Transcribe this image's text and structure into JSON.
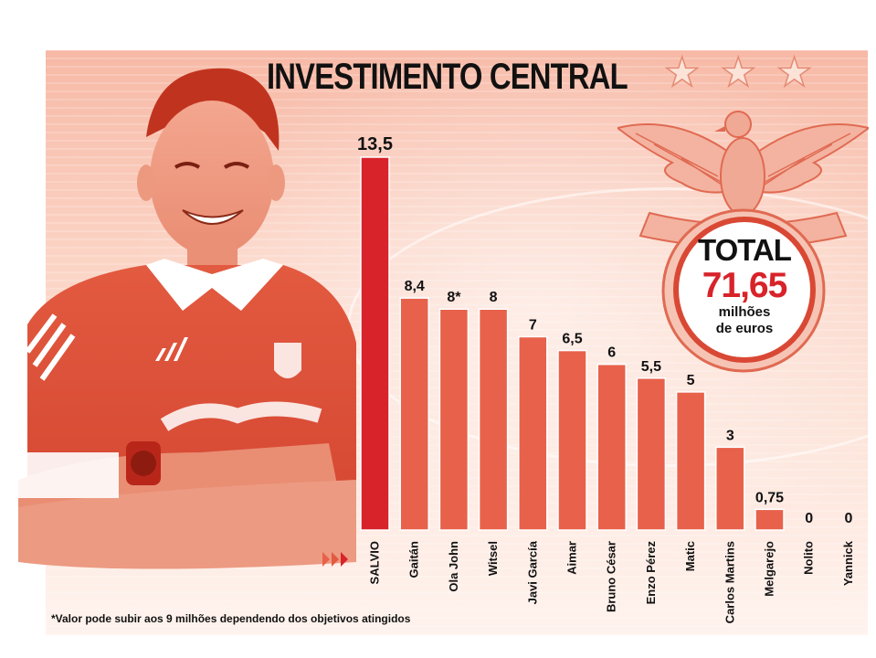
{
  "chart_data": {
    "type": "bar",
    "title": "INVESTIMENTO CENTRAL",
    "categories": [
      "SALVIO",
      "Gaitán",
      "Ola John",
      "Witsel",
      "Javi García",
      "Aimar",
      "Bruno César",
      "Enzo Pérez",
      "Matic",
      "Carlos Martins",
      "Melgarejo",
      "Nolito",
      "Yannick"
    ],
    "values": [
      13.5,
      8.4,
      8,
      8,
      7,
      6.5,
      6,
      5.5,
      5,
      3,
      0.75,
      0,
      0
    ],
    "value_labels": [
      "13,5",
      "8,4",
      "8*",
      "8",
      "7",
      "6,5",
      "6",
      "5,5",
      "5",
      "3",
      "0,75",
      "0",
      "0"
    ],
    "highlight_index": 0,
    "ylim": [
      0,
      13.5
    ],
    "xlabel": "",
    "ylabel": "",
    "grid": false,
    "colors": {
      "highlight_bar": "#d8232a",
      "bar": "#e8614a",
      "bar_edge": "#ffffff",
      "highlight_label": "#d8232a"
    }
  },
  "total": {
    "label": "TOTAL",
    "value": "71,65",
    "unit_line1": "milhões",
    "unit_line2": "de euros"
  },
  "footnote": "*Valor pode subir aos 9 milhões dependendo dos objetivos atingidos",
  "decor": {
    "stars": [
      "star-icon",
      "star-icon",
      "star-icon"
    ],
    "player_photo": "player-photo",
    "club_crest": "eagle-crest-icon"
  }
}
